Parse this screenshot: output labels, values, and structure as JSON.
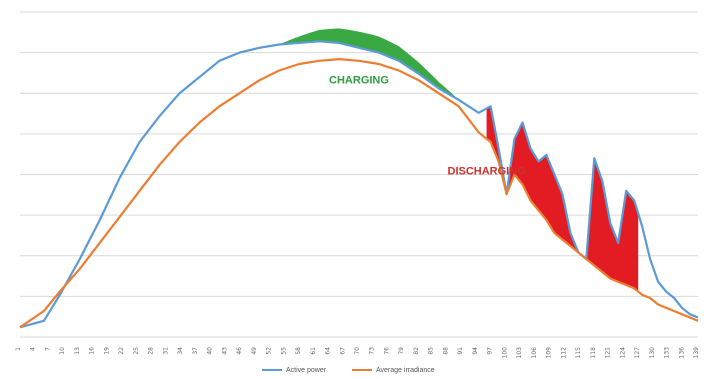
{
  "chart_data": {
    "type": "line",
    "title": "",
    "xlabel": "",
    "ylabel": "",
    "grid": true,
    "legend_placement": "bottom",
    "x_tick_labels": [
      "1",
      "4",
      "7",
      "10",
      "13",
      "16",
      "19",
      "22",
      "25",
      "28",
      "31",
      "34",
      "37",
      "40",
      "43",
      "46",
      "49",
      "52",
      "55",
      "58",
      "61",
      "64",
      "67",
      "70",
      "73",
      "76",
      "79",
      "82",
      "85",
      "88",
      "91",
      "94",
      "97",
      "100",
      "103",
      "106",
      "109",
      "112",
      "115",
      "118",
      "121",
      "124",
      "127",
      "130",
      "133",
      "136",
      "139"
    ],
    "x": [
      0,
      6,
      10,
      15,
      20,
      25,
      30,
      35,
      40,
      45,
      50,
      55,
      60,
      65,
      70,
      75,
      80,
      85,
      90,
      95,
      100,
      105,
      110,
      115,
      118,
      120,
      122,
      124,
      126,
      128,
      130,
      132,
      134,
      136,
      138,
      140,
      142,
      144,
      146,
      148,
      150,
      152,
      154,
      156,
      158,
      160,
      162,
      164,
      166,
      168,
      170
    ],
    "series": [
      {
        "name": "Active power",
        "color": "#5b9bd5",
        "values": [
          3,
          5,
          13,
          24,
          36,
          49,
          60,
          68,
          75,
          80,
          85,
          87.5,
          89,
          90,
          90.5,
          91,
          90.5,
          89,
          87.5,
          85,
          81,
          76.5,
          73,
          69,
          71,
          58,
          44,
          61,
          66,
          58,
          54,
          56,
          50,
          44,
          32,
          26,
          24,
          55,
          48,
          35,
          29,
          45,
          42,
          34,
          24,
          17,
          14,
          12,
          9,
          7,
          6
        ]
      },
      {
        "name": "Average irradiance",
        "color": "#ed7d31",
        "values": [
          3,
          8,
          14,
          21,
          29,
          37,
          45,
          53,
          60,
          66,
          71,
          75,
          79,
          82,
          84,
          85,
          85.5,
          85,
          84,
          82,
          79,
          75,
          71,
          63,
          60,
          54,
          44,
          50,
          47,
          42,
          39,
          36,
          32,
          30,
          28,
          26,
          24,
          22,
          20,
          18,
          17,
          16,
          15,
          13,
          12,
          10,
          9,
          8,
          7,
          6,
          5
        ]
      }
    ],
    "ylim": [
      0,
      100
    ],
    "charging_x": [
      65,
      110
    ],
    "discharging_x": [
      117,
      155
    ],
    "annotations": [
      {
        "text": "CHARGING",
        "color": "#2e9e3e",
        "at_x": 85,
        "at_y": 78
      },
      {
        "text": "DISCHARGING",
        "color": "#d0312d",
        "at_x": 117,
        "at_y": 50
      }
    ],
    "colors": {
      "charging_fill": "#3aa843",
      "discharging_fill": "#e31b23"
    }
  }
}
